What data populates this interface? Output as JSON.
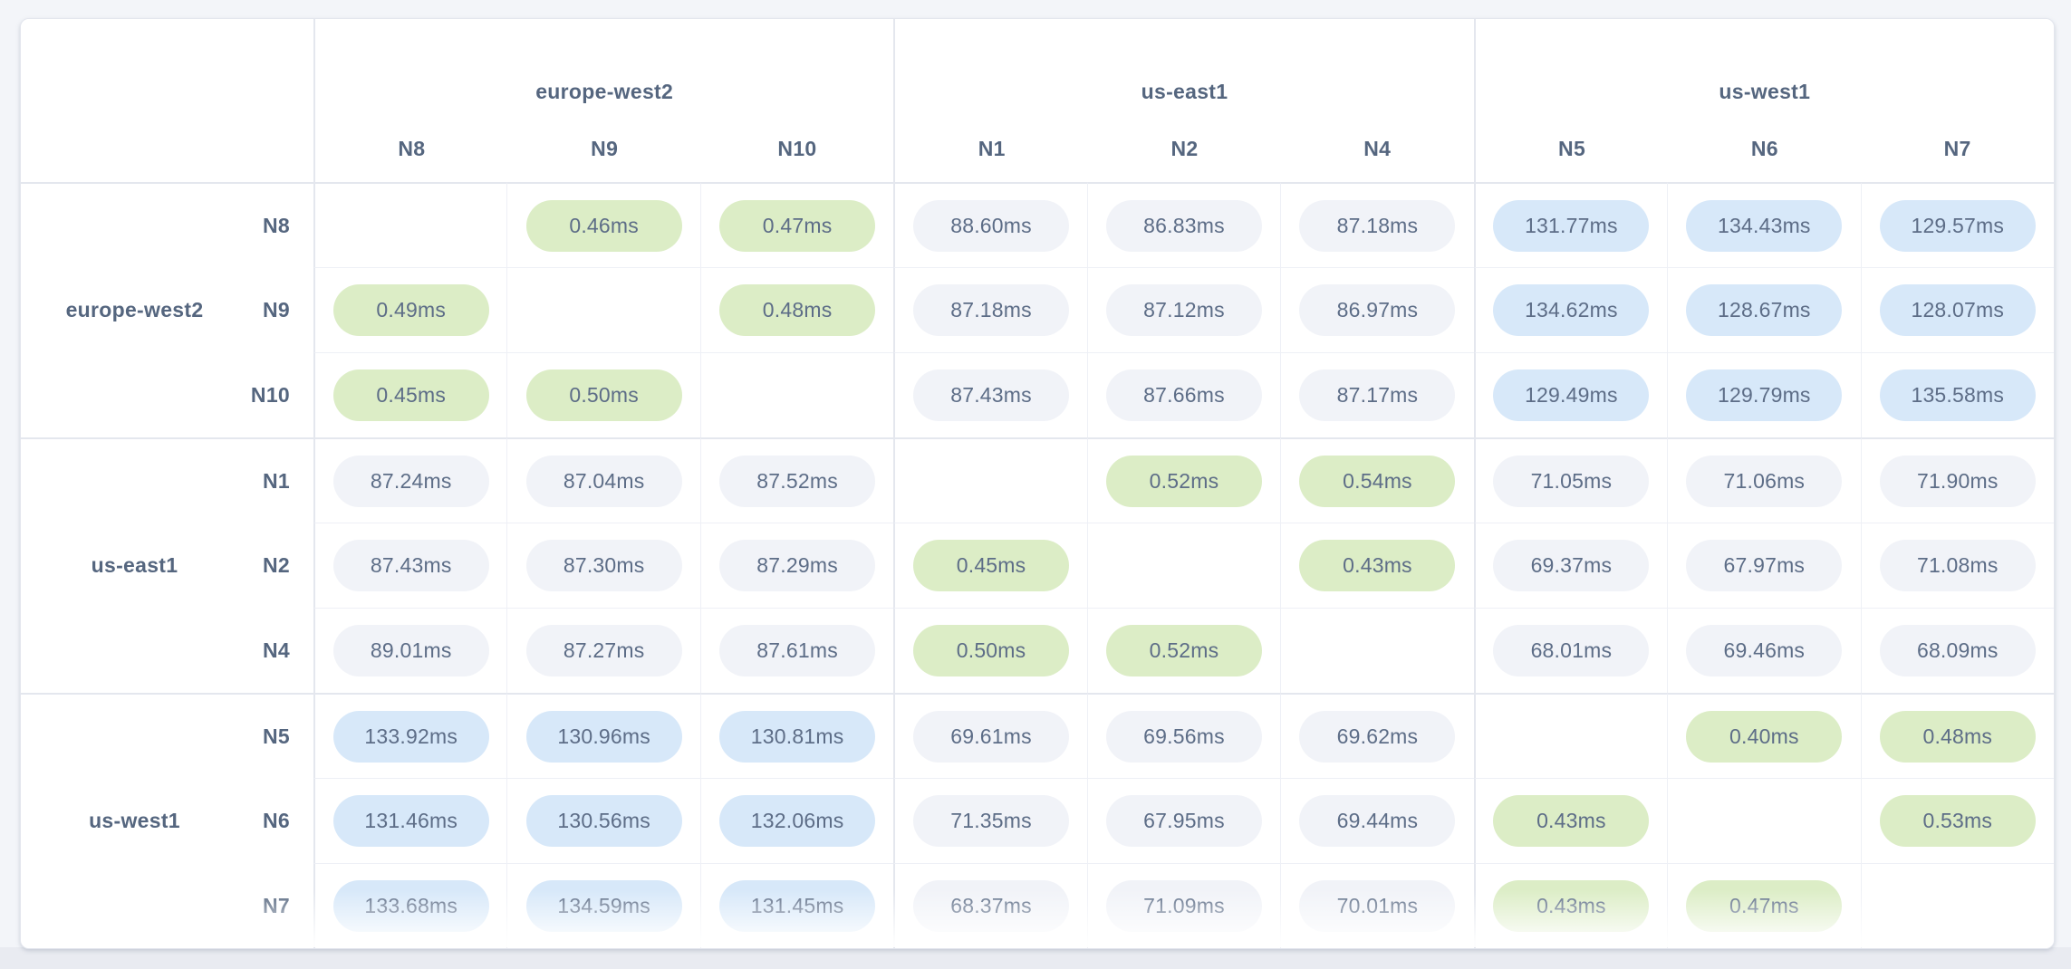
{
  "chart_data": {
    "type": "heatmap",
    "title": "",
    "unit_suffix": "ms",
    "value_decimals": 2,
    "column_groups": [
      {
        "region": "europe-west2",
        "nodes": [
          "N8",
          "N9",
          "N10"
        ]
      },
      {
        "region": "us-east1",
        "nodes": [
          "N1",
          "N2",
          "N4"
        ]
      },
      {
        "region": "us-west1",
        "nodes": [
          "N5",
          "N6",
          "N7"
        ]
      }
    ],
    "row_groups": [
      {
        "region": "europe-west2",
        "nodes": [
          "N8",
          "N9",
          "N10"
        ]
      },
      {
        "region": "us-east1",
        "nodes": [
          "N1",
          "N2",
          "N4"
        ]
      },
      {
        "region": "us-west1",
        "nodes": [
          "N5",
          "N6",
          "N7"
        ]
      }
    ],
    "columns": [
      "N8",
      "N9",
      "N10",
      "N1",
      "N2",
      "N4",
      "N5",
      "N6",
      "N7"
    ],
    "rows": [
      "N8",
      "N9",
      "N10",
      "N1",
      "N2",
      "N4",
      "N5",
      "N6",
      "N7"
    ],
    "values": [
      [
        null,
        0.46,
        0.47,
        88.6,
        86.83,
        87.18,
        131.77,
        134.43,
        129.57
      ],
      [
        0.49,
        null,
        0.48,
        87.18,
        87.12,
        86.97,
        134.62,
        128.67,
        128.07
      ],
      [
        0.45,
        0.5,
        null,
        87.43,
        87.66,
        87.17,
        129.49,
        129.79,
        135.58
      ],
      [
        87.24,
        87.04,
        87.52,
        null,
        0.52,
        0.54,
        71.05,
        71.06,
        71.9
      ],
      [
        87.43,
        87.3,
        87.29,
        0.45,
        null,
        0.43,
        69.37,
        67.97,
        71.08
      ],
      [
        89.01,
        87.27,
        87.61,
        0.5,
        0.52,
        null,
        68.01,
        69.46,
        68.09
      ],
      [
        133.92,
        130.96,
        130.81,
        69.61,
        69.56,
        69.62,
        null,
        0.4,
        0.48
      ],
      [
        131.46,
        130.56,
        132.06,
        71.35,
        67.95,
        69.44,
        0.43,
        null,
        0.53
      ],
      [
        133.68,
        134.59,
        131.45,
        68.37,
        71.09,
        70.01,
        0.43,
        0.47,
        null
      ]
    ],
    "level_thresholds": {
      "low_below": 1,
      "high_above": 100
    },
    "grid": true,
    "legend_position": "none"
  },
  "colors": {
    "pill_low_latency": "#dcedc6",
    "pill_mid_latency": "#f1f3f8",
    "pill_high_latency": "#d7e8f9",
    "label_text": "#55667f",
    "value_text": "#5d6d87"
  }
}
